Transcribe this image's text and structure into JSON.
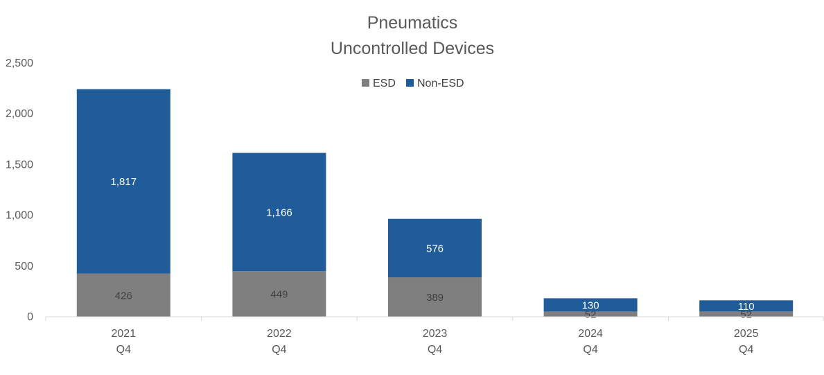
{
  "chart_data": {
    "type": "bar",
    "stacked": true,
    "title": "Pneumatics",
    "subtitle": "Uncontrolled Devices",
    "categories": [
      [
        "2021",
        "Q4"
      ],
      [
        "2022",
        "Q4"
      ],
      [
        "2023",
        "Q4"
      ],
      [
        "2024",
        "Q4"
      ],
      [
        "2025",
        "Q4"
      ]
    ],
    "series": [
      {
        "name": "ESD",
        "color": "#7f7f7f",
        "values": [
          426,
          449,
          389,
          52,
          52
        ],
        "labels": [
          "426",
          "449",
          "389",
          "52",
          "52"
        ]
      },
      {
        "name": "Non-ESD",
        "color": "#1f5c99",
        "values": [
          1817,
          1166,
          576,
          130,
          110
        ],
        "labels": [
          "1,817",
          "1,166",
          "576",
          "130",
          "110"
        ]
      }
    ],
    "ylim": [
      0,
      2500
    ],
    "yticks": [
      0,
      500,
      1000,
      1500,
      2000,
      2500
    ],
    "ytick_labels": [
      "0",
      "500",
      "1,000",
      "1,500",
      "2,000",
      "2,500"
    ],
    "legend_position": "top-center",
    "grid": false
  }
}
